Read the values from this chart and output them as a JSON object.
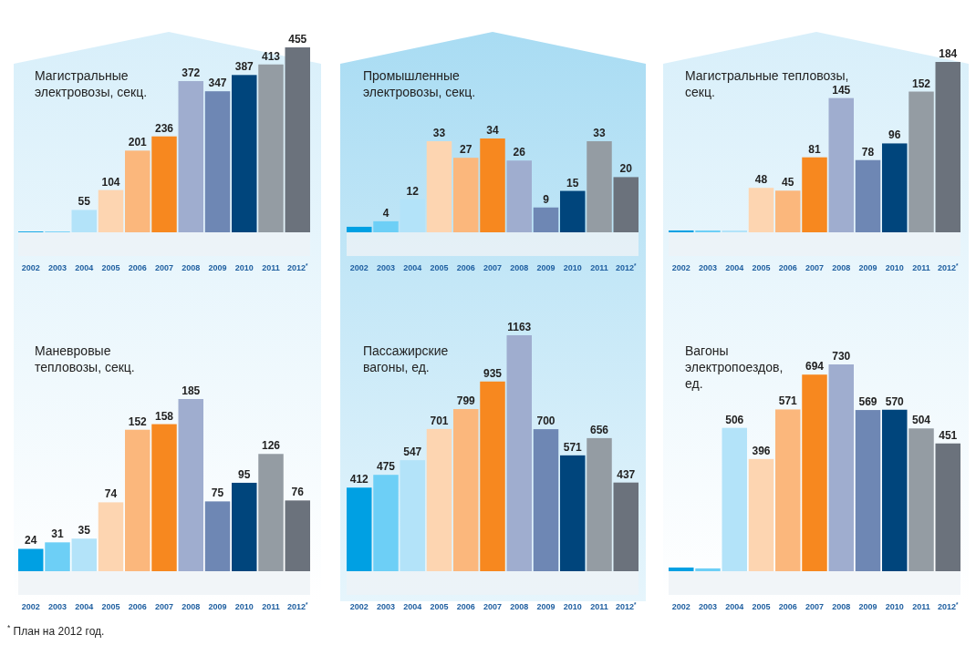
{
  "chart_data": [
    {
      "type": "bar",
      "title": "Магистральные\nэлектровозы, секц.",
      "categories": [
        "2002",
        "2003",
        "2004",
        "2005",
        "2006",
        "2007",
        "2008",
        "2009",
        "2010",
        "2011",
        "2012$^{*}$"
      ],
      "values": [
        2,
        2,
        55,
        104,
        201,
        236,
        372,
        347,
        387,
        413,
        455
      ],
      "value_labels": [
        null,
        null,
        "55",
        "104",
        "201",
        "236",
        "372",
        "347",
        "387",
        "413",
        "455"
      ],
      "colors": [
        "#00a0e3",
        "#6dcff6",
        "#b3e3f9",
        "#fdd5b1",
        "#fbb77c",
        "#f7881f",
        "#9fadcf",
        "#6e87b4",
        "#00457c",
        "#949ca3",
        "#6b727c"
      ],
      "tick_labels": "x"
    },
    {
      "type": "bar",
      "title": "Промышленные\nэлектровозы, секц.",
      "categories": [
        "2002",
        "2003",
        "2004",
        "2005",
        "2006",
        "2007",
        "2008",
        "2009",
        "2010",
        "2011",
        "2012$^{*}$"
      ],
      "values": [
        2,
        4,
        12,
        33,
        27,
        34,
        26,
        9,
        15,
        33,
        20
      ],
      "value_labels": [
        null,
        "4",
        "12",
        "33",
        "27",
        "34",
        "26",
        "9",
        "15",
        "33",
        "20"
      ],
      "colors": [
        "#00a0e3",
        "#6dcff6",
        "#b3e3f9",
        "#fdd5b1",
        "#fbb77c",
        "#f7881f",
        "#9fadcf",
        "#6e87b4",
        "#00457c",
        "#949ca3",
        "#6b727c"
      ],
      "tick_labels": "x"
    },
    {
      "type": "bar",
      "title": "Магистральные тепловозы,\nсекц.",
      "categories": [
        "2002",
        "2003",
        "2004",
        "2005",
        "2006",
        "2007",
        "2008",
        "2009",
        "2010",
        "2011",
        "2012$^{*}$"
      ],
      "values": [
        2,
        2,
        2,
        48,
        45,
        81,
        145,
        78,
        96,
        152,
        184
      ],
      "value_labels": [
        null,
        null,
        null,
        "48",
        "45",
        "81",
        "145",
        "78",
        "96",
        "152",
        "184"
      ],
      "colors": [
        "#00a0e3",
        "#6dcff6",
        "#b3e3f9",
        "#fdd5b1",
        "#fbb77c",
        "#f7881f",
        "#9fadcf",
        "#6e87b4",
        "#00457c",
        "#949ca3",
        "#6b727c"
      ],
      "tick_labels": "x"
    },
    {
      "type": "bar",
      "title": "Маневровые\nтепловозы, секц.",
      "categories": [
        "2002",
        "2003",
        "2004",
        "2005",
        "2006",
        "2007",
        "2008",
        "2009",
        "2010",
        "2011",
        "2012$^{*}$"
      ],
      "values": [
        24,
        31,
        35,
        74,
        152,
        158,
        185,
        75,
        95,
        126,
        76
      ],
      "data_labels": true,
      "colors": [
        "#00a0e3",
        "#6dcff6",
        "#b3e3f9",
        "#fdd5b1",
        "#fbb77c",
        "#f7881f",
        "#9fadcf",
        "#6e87b4",
        "#00457c",
        "#949ca3",
        "#6b727c"
      ],
      "tick_labels": "x",
      "annotations": [
        "$^{*}$ План на 2012 год."
      ]
    },
    {
      "type": "bar",
      "title": "Пассажирские\nвагоны, ед.",
      "categories": [
        "2002",
        "2003",
        "2004",
        "2005",
        "2006",
        "2007",
        "2008",
        "2009",
        "2010",
        "2011",
        "2012$^{*}$"
      ],
      "values": [
        412,
        475,
        547,
        701,
        799,
        935,
        1163,
        700,
        571,
        656,
        437
      ],
      "data_labels": true,
      "colors": [
        "#00a0e3",
        "#6dcff6",
        "#b3e3f9",
        "#fdd5b1",
        "#fbb77c",
        "#f7881f",
        "#9fadcf",
        "#6e87b4",
        "#00457c",
        "#949ca3",
        "#6b727c"
      ],
      "tick_labels": "x"
    },
    {
      "type": "bar",
      "title": "Вагоны\nэлектропоездов,\nед.",
      "categories": [
        "2002",
        "2003",
        "2004",
        "2005",
        "2006",
        "2007",
        "2008",
        "2009",
        "2010",
        "2011",
        "2012$^{*}$"
      ],
      "values": [
        13,
        10,
        506,
        396,
        571,
        694,
        730,
        569,
        570,
        504,
        451
      ],
      "value_labels": [
        null,
        null,
        "506",
        "396",
        "571",
        "694",
        "730",
        "569",
        "570",
        "504",
        "451"
      ],
      "colors": [
        "#00a0e3",
        "#6dcff6",
        "#b3e3f9",
        "#fdd5b1",
        "#fbb77c",
        "#f7881f",
        "#9fadcf",
        "#6e87b4",
        "#00457c",
        "#949ca3",
        "#6b727c"
      ],
      "tick_labels": "x"
    }
  ]
}
